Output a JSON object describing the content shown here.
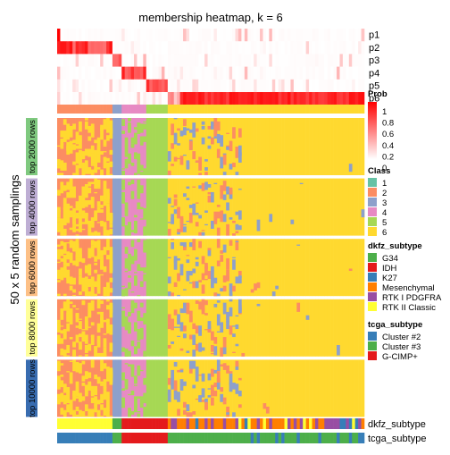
{
  "chart_data": {
    "type": "heatmap",
    "title": "membership heatmap, k = 6",
    "ylabel": "50 x 5 random samplings",
    "row_blocks": [
      "top 2000 rows",
      "top 4000 rows",
      "top 6000 rows",
      "top 8000 rows",
      "top 10000 rows"
    ],
    "row_block_colors": [
      "#7fc97f",
      "#beaed4",
      "#fdc086",
      "#ffff99",
      "#386cb0"
    ],
    "membership_rows": [
      "p1",
      "p2",
      "p3",
      "p4",
      "p5",
      "p6"
    ],
    "prob_legend": {
      "title": "Prob",
      "ticks": [
        "1",
        "0.8",
        "0.6",
        "0.4",
        "0.2",
        "0"
      ],
      "color_low": "#ffffff",
      "color_high": "#ff0000"
    },
    "class_legend": {
      "title": "Class",
      "items": [
        {
          "label": "1",
          "color": "#66c2a5"
        },
        {
          "label": "2",
          "color": "#fc8d62"
        },
        {
          "label": "3",
          "color": "#8da0cb"
        },
        {
          "label": "4",
          "color": "#e78ac3"
        },
        {
          "label": "5",
          "color": "#a6d854"
        },
        {
          "label": "6",
          "color": "#ffd92f"
        }
      ]
    },
    "dkfz_legend": {
      "title": "dkfz_subtype",
      "items": [
        {
          "label": "G34",
          "color": "#4daf4a"
        },
        {
          "label": "IDH",
          "color": "#e41a1c"
        },
        {
          "label": "K27",
          "color": "#377eb8"
        },
        {
          "label": "Mesenchymal",
          "color": "#ff7f00"
        },
        {
          "label": "RTK I PDGFRA",
          "color": "#984ea3"
        },
        {
          "label": "RTK II Classic",
          "color": "#ffff33"
        }
      ]
    },
    "tcga_legend": {
      "title": "tcga_subtype",
      "items": [
        {
          "label": "Cluster #2",
          "color": "#377eb8"
        },
        {
          "label": "Cluster #3",
          "color": "#4daf4a"
        },
        {
          "label": "G-CIMP+",
          "color": "#e41a1c"
        }
      ]
    },
    "bottom_tracks": [
      "dkfz_subtype",
      "tcga_subtype"
    ],
    "class_blocks": [
      {
        "class": "2",
        "samples": 18
      },
      {
        "class": "3",
        "samples": 3
      },
      {
        "class": "4",
        "samples": 8
      },
      {
        "class": "5",
        "samples": 7
      },
      {
        "class": "6",
        "samples": 64
      }
    ]
  }
}
